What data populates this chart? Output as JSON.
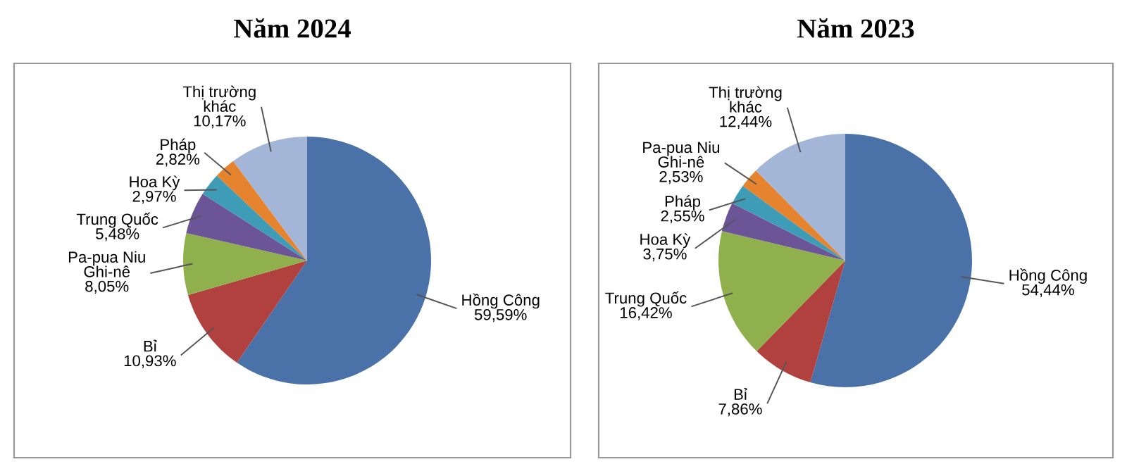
{
  "chart_data": [
    {
      "type": "pie",
      "title": "Năm 2024",
      "categories": [
        "Hồng Công",
        "Bỉ",
        "Pa-pua Niu\nGhi-nê",
        "Trung Quốc",
        "Hoa Kỳ",
        "Pháp",
        "Thị trường\nkhác"
      ],
      "values": [
        59.59,
        10.93,
        8.05,
        5.48,
        2.97,
        2.82,
        10.17
      ],
      "value_labels": [
        "59,59%",
        "10,93%",
        "8,05%",
        "5,48%",
        "2,97%",
        "2,82%",
        "10,17%"
      ],
      "colors": [
        "#4a72a8",
        "#b0413e",
        "#8fb04c",
        "#6c5596",
        "#3f9cb6",
        "#e5832f",
        "#a4b6d8"
      ]
    },
    {
      "type": "pie",
      "title": "Năm 2023",
      "categories": [
        "Hồng Công",
        "Bỉ",
        "Trung Quốc",
        "Hoa Kỳ",
        "Pháp",
        "Pa-pua Niu\nGhi-nê",
        "Thị trường\nkhác"
      ],
      "values": [
        54.44,
        7.86,
        16.42,
        3.75,
        2.55,
        2.53,
        12.44
      ],
      "value_labels": [
        "54,44%",
        "7,86%",
        "16,42%",
        "3,75%",
        "2,55%",
        "2,53%",
        "12,44%"
      ],
      "colors": [
        "#4a72a8",
        "#b0413e",
        "#8fb04c",
        "#6c5596",
        "#3f9cb6",
        "#e5832f",
        "#a4b6d8"
      ]
    }
  ]
}
